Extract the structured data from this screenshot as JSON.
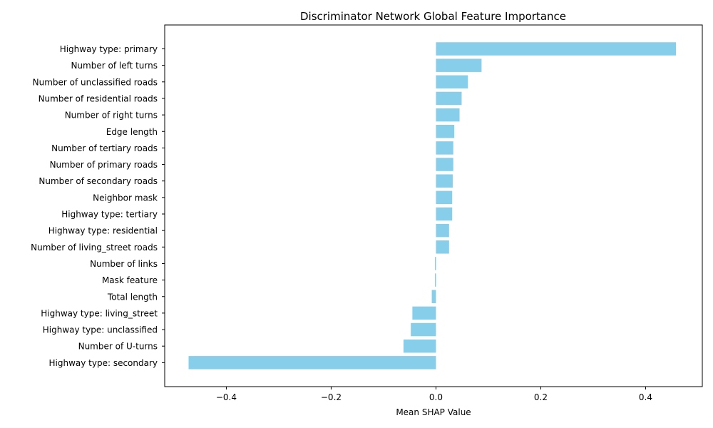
{
  "chart_data": {
    "type": "bar",
    "orientation": "horizontal",
    "title": "Discriminator Network Global Feature Importance",
    "xlabel": "Mean SHAP Value",
    "ylabel": "",
    "xlim": [
      -0.5176,
      0.5082
    ],
    "xticks": [
      -0.4,
      -0.2,
      0.0,
      0.2,
      0.4
    ],
    "xtick_labels": [
      "−0.4",
      "−0.2",
      "0.0",
      "0.2",
      "0.4"
    ],
    "bar_color": "#87CEEB",
    "categories": [
      "Highway type: primary",
      "Number of left turns",
      "Number of unclassified roads",
      "Number of residential roads",
      "Number of right turns",
      "Edge length",
      "Number of tertiary roads",
      "Number of primary roads",
      "Number of secondary roads",
      "Neighbor mask",
      "Highway type: tertiary",
      "Highway type: residential",
      "Number of living_street roads",
      "Number of links",
      "Mask feature",
      "Total length",
      "Highway type: living_street",
      "Highway type: unclassified",
      "Number of U-turns",
      "Highway type: secondary"
    ],
    "values": [
      0.458,
      0.087,
      0.061,
      0.049,
      0.045,
      0.035,
      0.033,
      0.033,
      0.032,
      0.031,
      0.031,
      0.025,
      0.025,
      -0.002,
      -0.002,
      -0.008,
      -0.045,
      -0.048,
      -0.062,
      -0.472
    ],
    "grid": false
  }
}
